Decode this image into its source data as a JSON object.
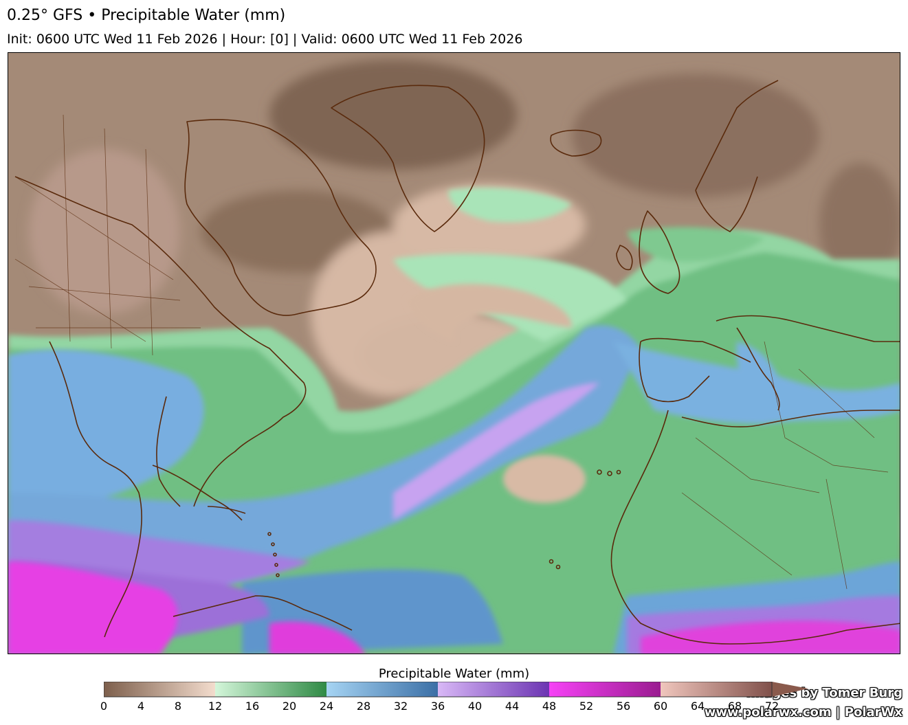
{
  "header": {
    "title": "0.25° GFS • Precipitable Water (mm)",
    "subtitle": "Init: 0600 UTC Wed 11 Feb 2026 | Hour: [0] | Valid: 0600 UTC Wed 11 Feb 2026"
  },
  "credits": {
    "line1": "Images by Tomer Burg",
    "line2": "www.polarwx.com | PolarWx"
  },
  "colorbar": {
    "title": "Precipitable Water (mm)",
    "min": 0,
    "max": 72,
    "tick_labels": [
      "0",
      "4",
      "8",
      "12",
      "16",
      "20",
      "24",
      "28",
      "32",
      "36",
      "40",
      "44",
      "48",
      "52",
      "56",
      "60",
      "64",
      "68",
      "72"
    ],
    "segments": [
      {
        "from": 0,
        "to": 12,
        "colors": [
          "#7d5f4c",
          "#f3dccd"
        ]
      },
      {
        "from": 12,
        "to": 24,
        "colors": [
          "#d4f6da",
          "#2f8a45"
        ]
      },
      {
        "from": 24,
        "to": 36,
        "colors": [
          "#a6d4f3",
          "#3b6fa6"
        ]
      },
      {
        "from": 36,
        "to": 48,
        "colors": [
          "#d8b8f6",
          "#6b34b2"
        ]
      },
      {
        "from": 48,
        "to": 60,
        "colors": [
          "#f642f6",
          "#9a1c90"
        ]
      },
      {
        "from": 60,
        "to": 72,
        "colors": [
          "#f0c6bd",
          "#80504a"
        ]
      }
    ],
    "extend_color": "#8a5a4c"
  },
  "map": {
    "region": "North Atlantic",
    "palette": {
      "dry_dark": "#8e7360",
      "dry_light": "#d8b9a4",
      "green_light": "#a9e4b8",
      "green_mid": "#6cbf80",
      "blue": "#6fa6d6",
      "purple": "#a57ae0",
      "magenta": "#e83ce6",
      "coastline": "#5a2a0c"
    }
  }
}
